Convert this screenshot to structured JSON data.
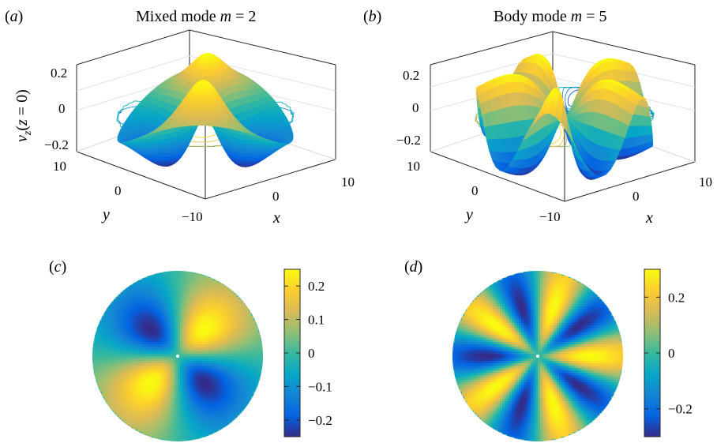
{
  "chart_data": [
    {
      "panel": "(a)",
      "type": "surface3d",
      "mode": "Mixed mode",
      "m_value": "2",
      "zlabel": "v_z(z = 0)",
      "xlabel": "x",
      "ylabel": "y",
      "xticks": [
        "0",
        "10"
      ],
      "yticks": [
        "10",
        "0",
        "−10"
      ],
      "zticks": [
        "0.2",
        "0",
        "−0.2"
      ],
      "zlim": [
        -0.25,
        0.25
      ],
      "azimuthal_wavenumber": 2,
      "amplitude": 0.25,
      "peak_radius": 4.5,
      "radius": 10,
      "contour_projection": true
    },
    {
      "panel": "(b)",
      "type": "surface3d",
      "mode": "Body mode",
      "m_value": "5",
      "xlabel": "x",
      "ylabel": "y",
      "xticks": [
        "0",
        "10"
      ],
      "yticks": [
        "10",
        "0",
        "−10"
      ],
      "zticks": [
        "0.2",
        "0",
        "−0.2"
      ],
      "zlim": [
        -0.3,
        0.3
      ],
      "azimuthal_wavenumber": 5,
      "amplitude": 0.3,
      "peak_radius": 6,
      "radius": 10,
      "contour_projection": true
    },
    {
      "panel": "(c)",
      "type": "heatmap",
      "azimuthal_wavenumber": 2,
      "colorbar_ticks": [
        "0.2",
        "0.1",
        "0",
        "−0.1",
        "−0.2"
      ],
      "colorbar_tick_values": [
        0.2,
        0.1,
        0,
        -0.1,
        -0.2
      ],
      "clim": [
        -0.25,
        0.25
      ],
      "colormap": "parula"
    },
    {
      "panel": "(d)",
      "type": "heatmap",
      "azimuthal_wavenumber": 5,
      "colorbar_ticks": [
        "0.2",
        "0",
        "−0.2"
      ],
      "colorbar_tick_values": [
        0.2,
        0,
        -0.2
      ],
      "clim": [
        -0.3,
        0.3
      ],
      "colormap": "parula"
    }
  ]
}
